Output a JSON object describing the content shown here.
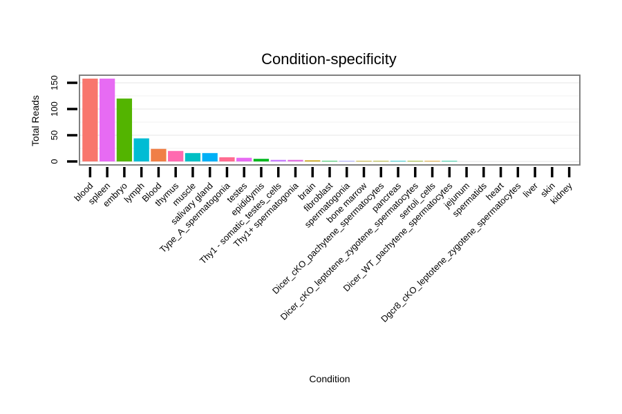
{
  "chart_data": {
    "type": "bar",
    "title": "Condition-specificity",
    "xlabel": "Condition",
    "ylabel": "Total Reads",
    "ylim": [
      0,
      165
    ],
    "yticks": [
      0,
      50,
      100,
      150
    ],
    "ytick_labels": [
      "0",
      "50",
      "100",
      "150"
    ],
    "grid": "horizontal",
    "categories": [
      "blood",
      "spleen",
      "embryo",
      "lymph",
      "Blood",
      "thymus",
      "muscle",
      "salivary gland",
      "Type_A_spermatogonia",
      "testes",
      "epididymis",
      "Thy1 - somatic_testes_cells",
      "Thy1+ spermatogonia",
      "brain",
      "fibroblast",
      "spermatogonia",
      "bone marrow",
      "Dicer_cKO_pachytene_spermatocytes",
      "pancreas",
      "Dicer_cKO_leptotene_zygotene_spermatocytes",
      "sertoli_cells",
      "Dicer_WT_pachytene_spermatocytes",
      "jejunum",
      "spermatids",
      "heart",
      "Dgcr8_cKO_leptotene_zygotene_spermatocytes",
      "liver",
      "skin",
      "kidney"
    ],
    "values": [
      158,
      158,
      120,
      44,
      24,
      20,
      16,
      16,
      8,
      7,
      5,
      3,
      3,
      2,
      1,
      1,
      1,
      1,
      1,
      1,
      1,
      1,
      0,
      0,
      0,
      0,
      0,
      0,
      0
    ],
    "colors": [
      "#F8766D",
      "#E76BF3",
      "#53B400",
      "#00BCD4",
      "#F07F47",
      "#FF6AB0",
      "#00BFC4",
      "#00B0F6",
      "#FF6C91",
      "#E76BF3",
      "#00B81F",
      "#C77CFF",
      "#E070E0",
      "#C49A00",
      "#00BA38",
      "#9590FF",
      "#B79F00",
      "#A3A500",
      "#00BFC4",
      "#8AAB00",
      "#D89000",
      "#00C08B",
      "#F8766D",
      "#E76BF3",
      "#53B400",
      "#00BCD4",
      "#F07F47",
      "#FF6AB0",
      "#00B0F6"
    ]
  }
}
